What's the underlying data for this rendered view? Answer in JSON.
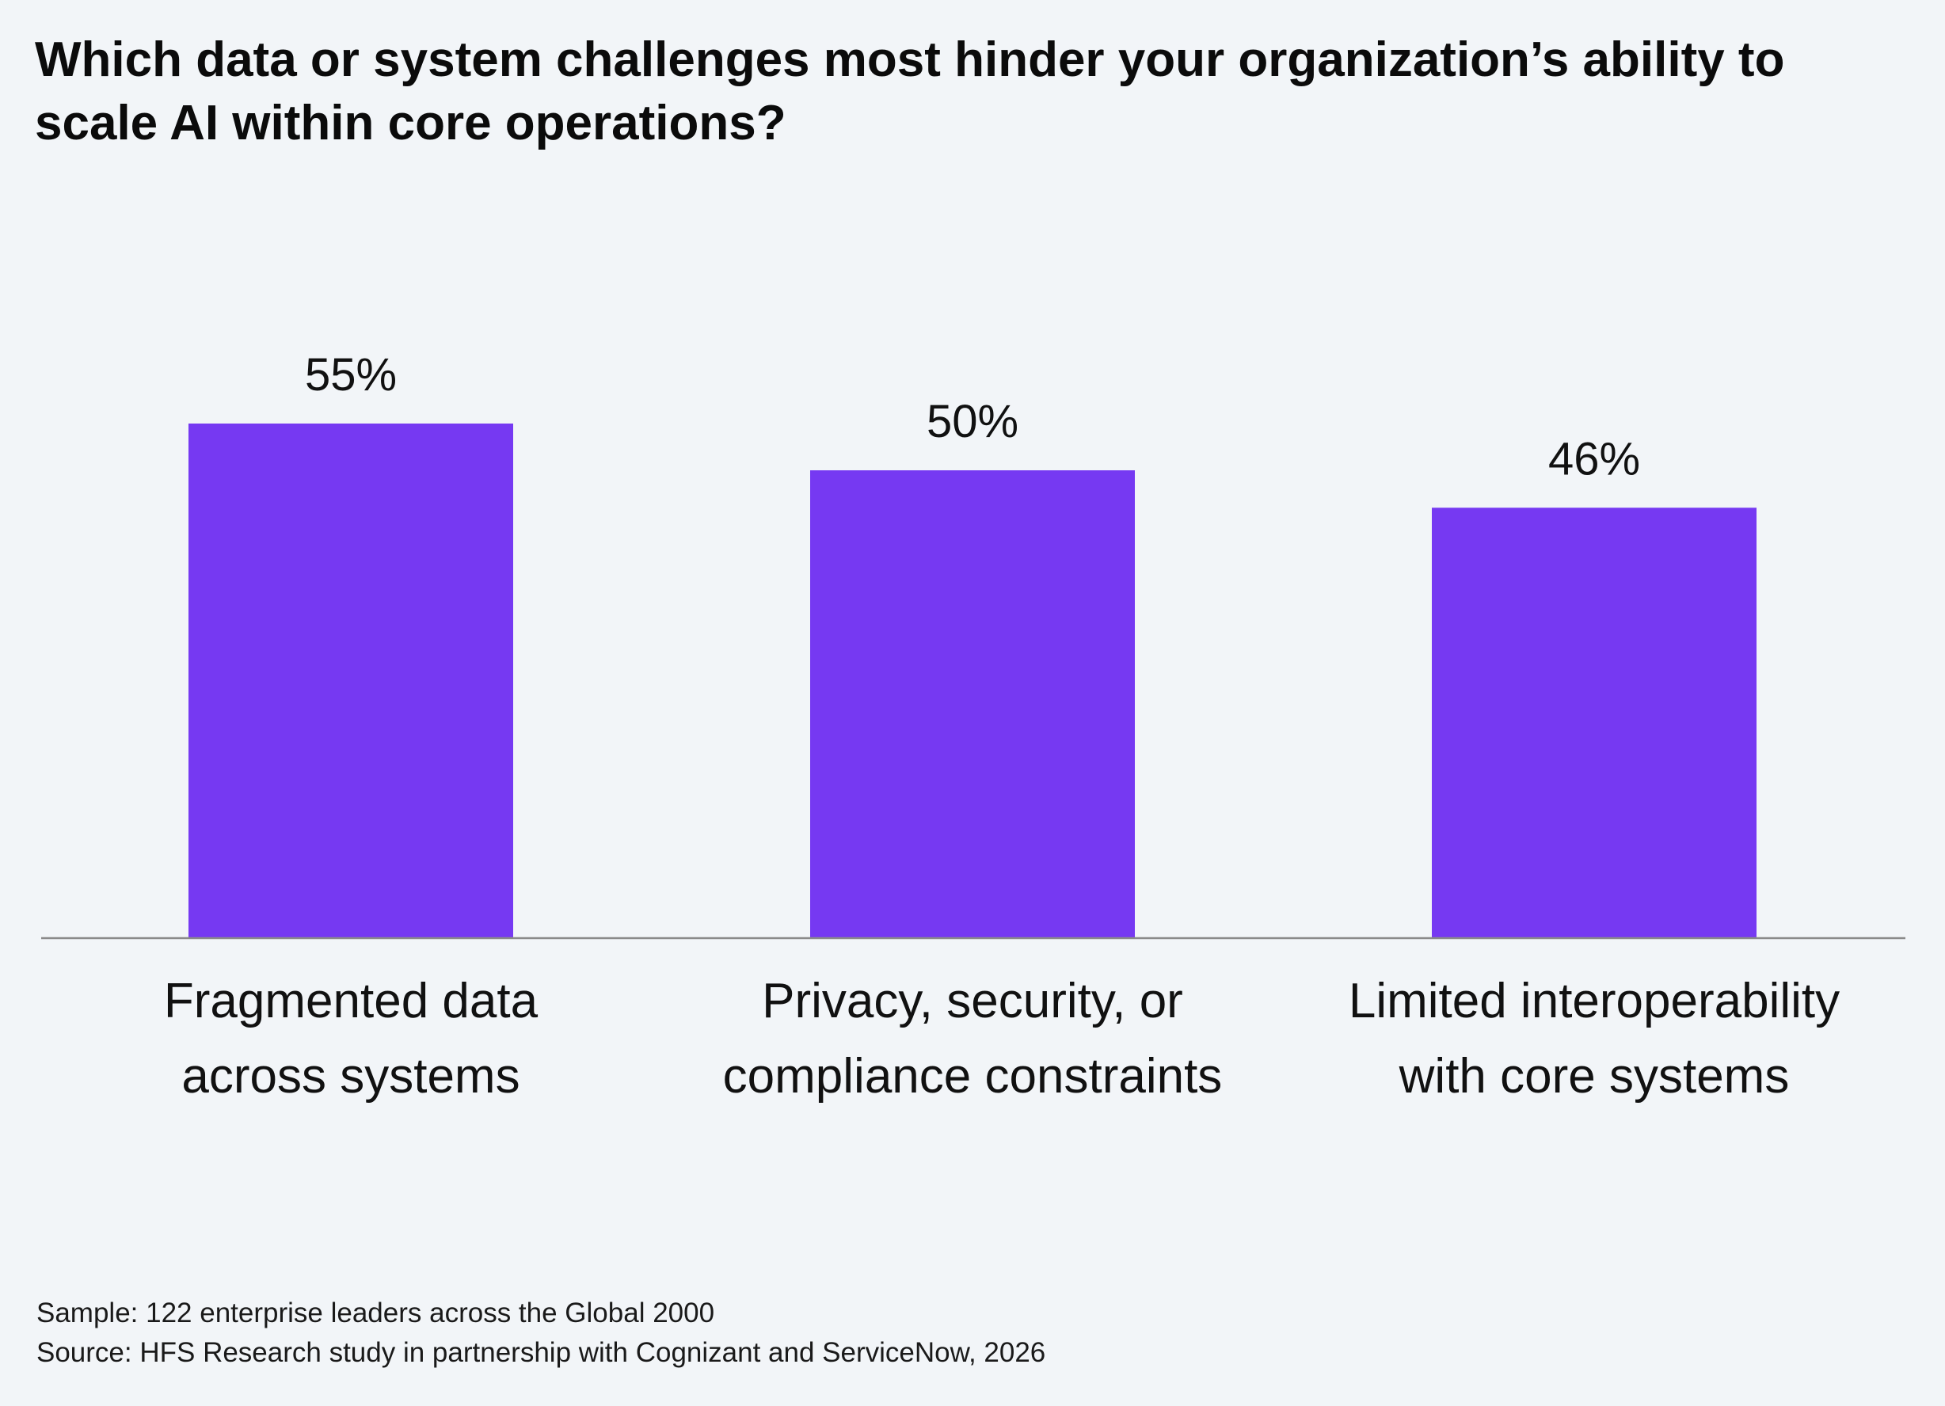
{
  "colors": {
    "background": "#f2f5f8",
    "bar": "#7639f2",
    "axis": "#8a8a8a",
    "text": "#111111"
  },
  "chart_data": {
    "type": "bar",
    "title": "Which data or system challenges most hinder your organization’s ability to scale AI within core operations?",
    "categories": [
      [
        "Fragmented data",
        "across systems"
      ],
      [
        "Privacy, security, or",
        "compliance constraints"
      ],
      [
        "Limited interoperability",
        "with core systems"
      ]
    ],
    "values": [
      55,
      50,
      46
    ],
    "value_labels": [
      "55%",
      "50%",
      "46%"
    ],
    "unit": "%",
    "ylim": [
      0,
      100
    ],
    "grid": false,
    "legend": "none"
  },
  "footer": {
    "sample": "Sample: 122 enterprise leaders across the Global 2000",
    "source": "Source: HFS Research study in partnership with Cognizant and ServiceNow, 2026"
  }
}
